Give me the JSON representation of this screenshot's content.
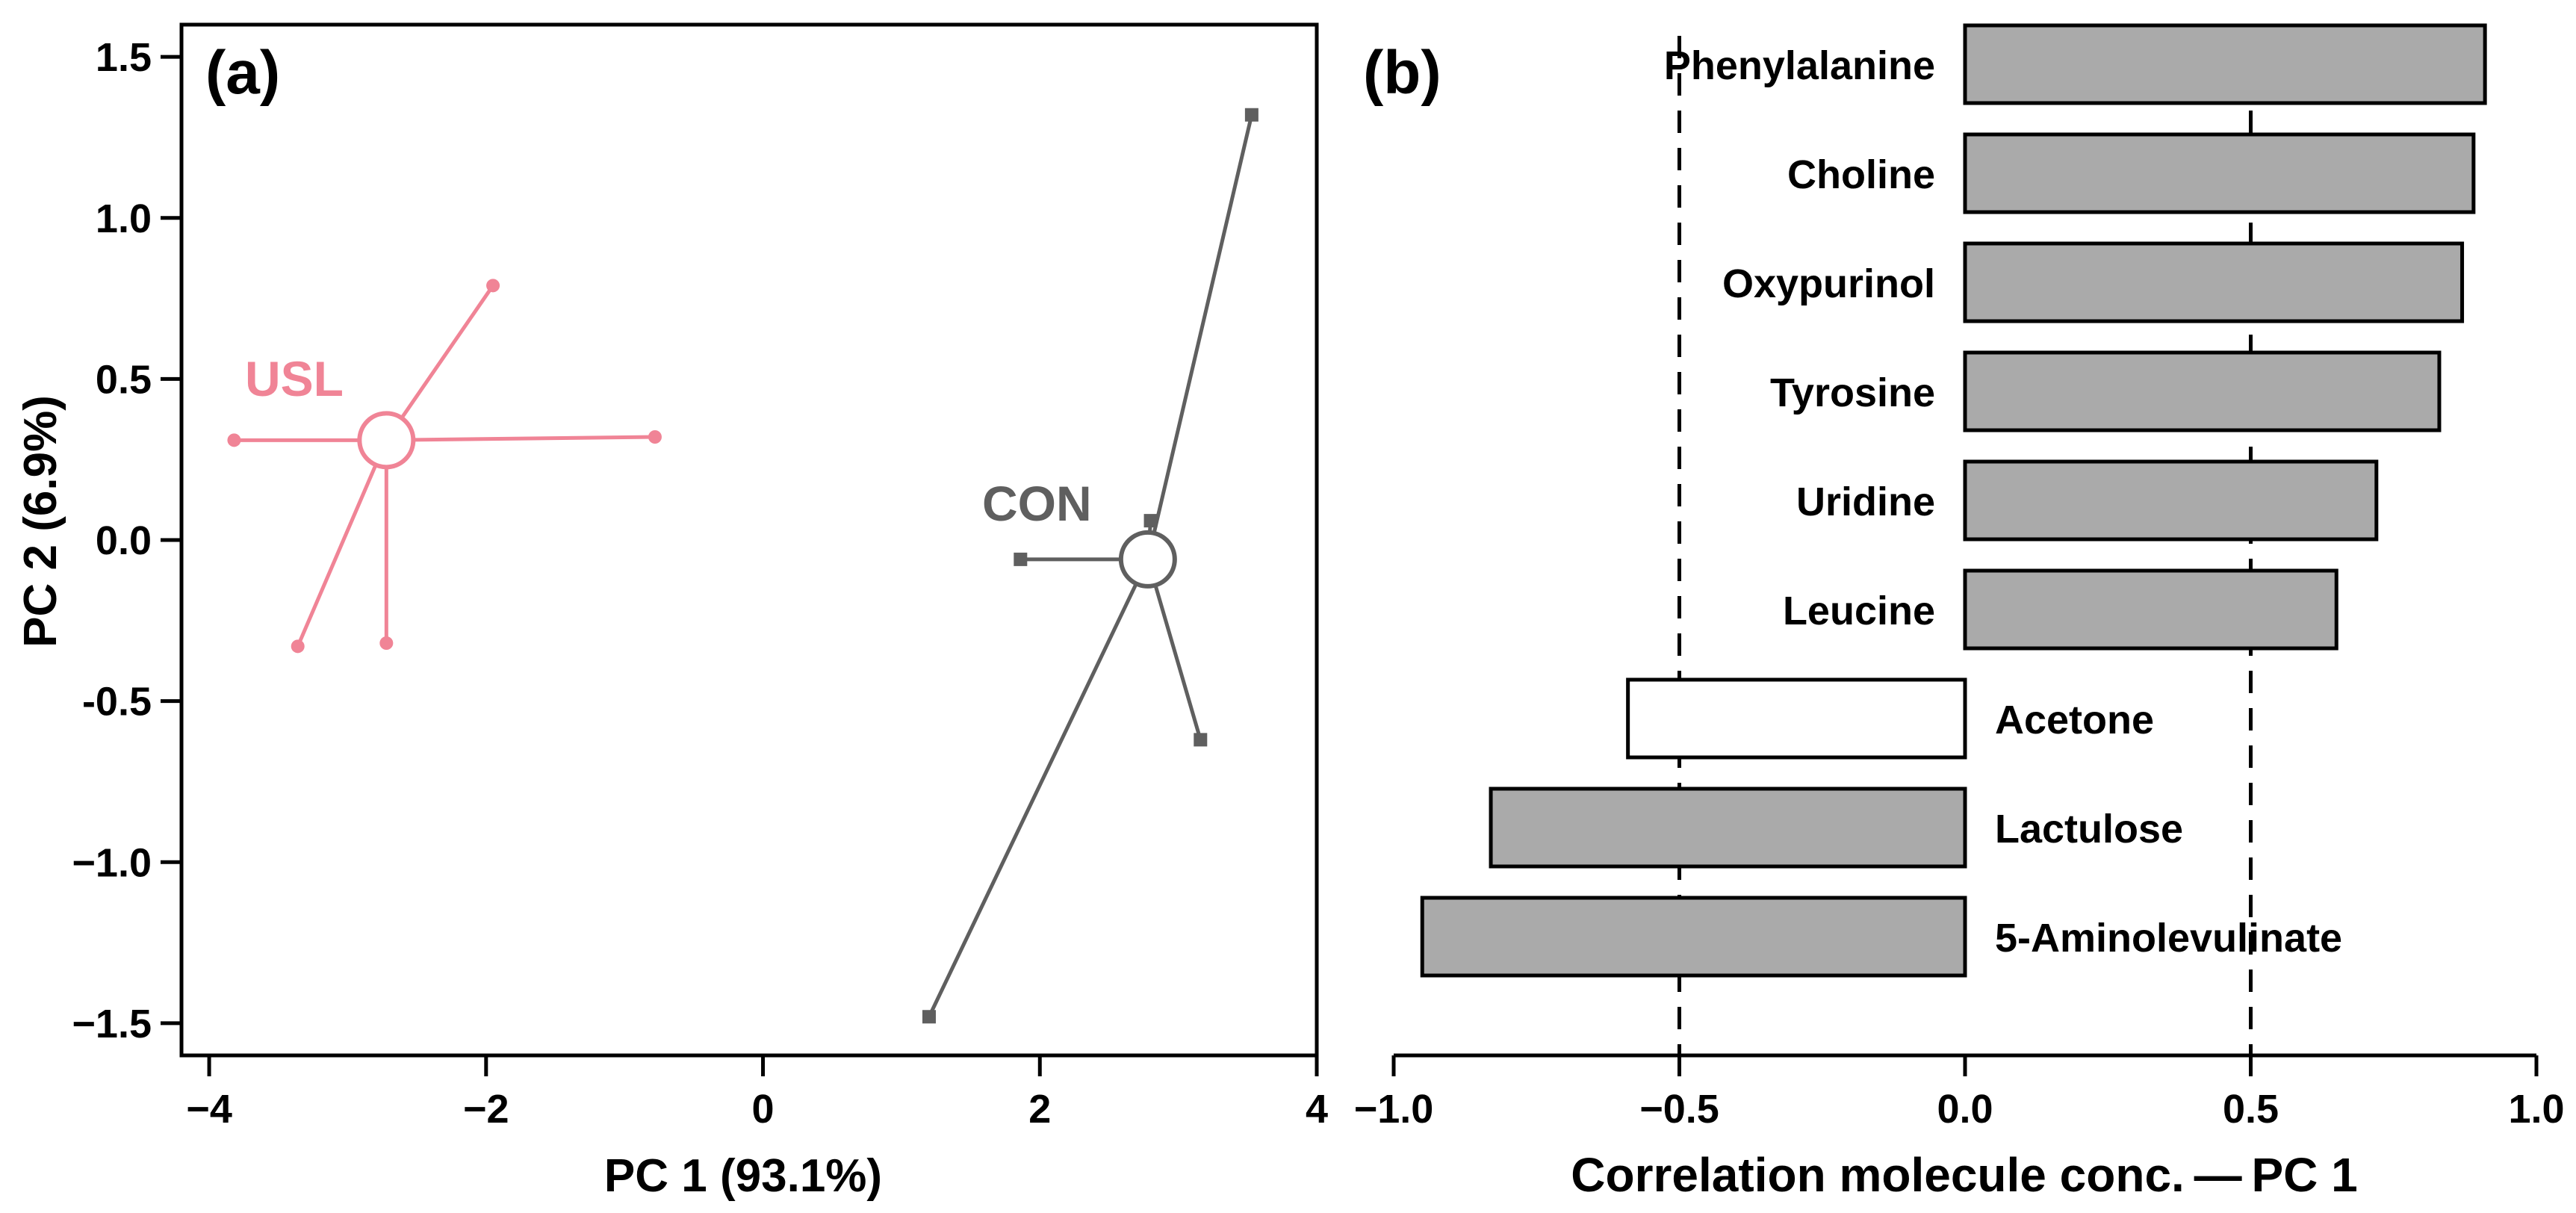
{
  "chart_data": [
    {
      "panel": "(a)",
      "type": "scatter",
      "xlabel": "PC 1 (93.1%)",
      "ylabel": "PC 2 (6.9%)",
      "xlim": [
        -4.2,
        4.0
      ],
      "ylim": [
        -1.6,
        1.6
      ],
      "x_ticks": [
        -4,
        -2,
        0,
        2,
        4
      ],
      "x_tick_labels": [
        "−4",
        "−2",
        "0",
        "2",
        "4"
      ],
      "y_ticks": [
        1.5,
        1.0,
        0.5,
        0.0,
        -0.5,
        -1.0,
        -1.5
      ],
      "y_tick_labels": [
        "1.5",
        "1.0",
        "0.5",
        "0.0",
        "-0.5",
        "−1.0",
        "−1.5"
      ],
      "groups": [
        {
          "name": "USL",
          "color": "#f08496",
          "marker": "circle",
          "centroid": [
            -2.72,
            0.31
          ],
          "points": [
            [
              -1.95,
              0.79
            ],
            [
              -0.78,
              0.32
            ],
            [
              -3.82,
              0.31
            ],
            [
              -3.36,
              -0.33
            ],
            [
              -2.72,
              -0.32
            ]
          ]
        },
        {
          "name": "CON",
          "color": "#5f5f5f",
          "marker": "square",
          "centroid": [
            2.78,
            -0.06
          ],
          "points": [
            [
              3.53,
              1.32
            ],
            [
              2.8,
              0.06
            ],
            [
              1.86,
              -0.06
            ],
            [
              3.16,
              -0.62
            ],
            [
              1.2,
              -1.48
            ]
          ]
        }
      ]
    },
    {
      "panel": "(b)",
      "type": "bar",
      "orientation": "horizontal",
      "xlabel": "Correlation molecule conc. — PC 1",
      "xlim": [
        -1.0,
        1.0
      ],
      "x_ticks": [
        -1.0,
        -0.5,
        0.0,
        0.5,
        1.0
      ],
      "x_tick_labels": [
        "−1.0",
        "−0.5",
        "0.0",
        "0.5",
        "1.0"
      ],
      "reference_lines": [
        -0.5,
        0.5
      ],
      "categories": [
        "Phenylalanine",
        "Choline",
        "Oxypurinol",
        "Tyrosine",
        "Uridine",
        "Leucine",
        "Acetone",
        "Lactulose",
        "5-Aminolevulinate"
      ],
      "values": [
        0.91,
        0.89,
        0.87,
        0.83,
        0.72,
        0.65,
        -0.59,
        -0.83,
        -0.95
      ],
      "fills": [
        "#aaaaaa",
        "#aaaaaa",
        "#aaaaaa",
        "#aaaaaa",
        "#aaaaaa",
        "#aaaaaa",
        "#ffffff",
        "#aaaaaa",
        "#aaaaaa"
      ]
    }
  ]
}
